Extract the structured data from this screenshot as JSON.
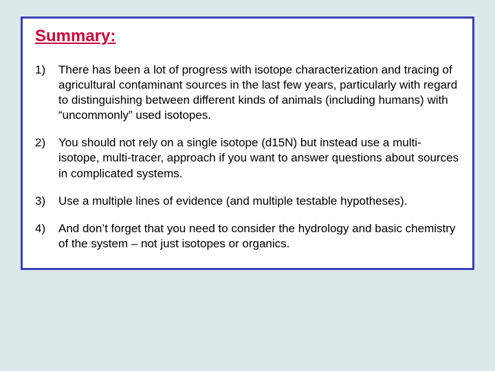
{
  "colors": {
    "page_bg": "#dde8ea",
    "panel_bg": "#ffffff",
    "panel_border": "#3a3fb5",
    "title_color": "#c70039",
    "text_color": "#000000"
  },
  "typography": {
    "title_fontsize": 24,
    "body_fontsize": 17,
    "font_family": "Arial"
  },
  "title": "Summary:",
  "items": [
    {
      "num": "1)",
      "text": "There has been a lot of progress with isotope characterization and tracing of agricultural contaminant sources in the last few years, particularly with regard to distinguishing between different kinds of animals (including humans) with “uncommonly” used isotopes."
    },
    {
      "num": "2)",
      "text": "You should not rely on a single isotope (d15N) but instead use a multi-isotope, multi-tracer, approach if you want to answer questions about sources in complicated systems."
    },
    {
      "num": "3)",
      "text": "Use a multiple lines of evidence (and multiple testable hypotheses)."
    },
    {
      "num": "4)",
      "text": "And don’t forget that you need to consider the hydrology and basic chemistry of the system – not just isotopes or organics."
    }
  ]
}
